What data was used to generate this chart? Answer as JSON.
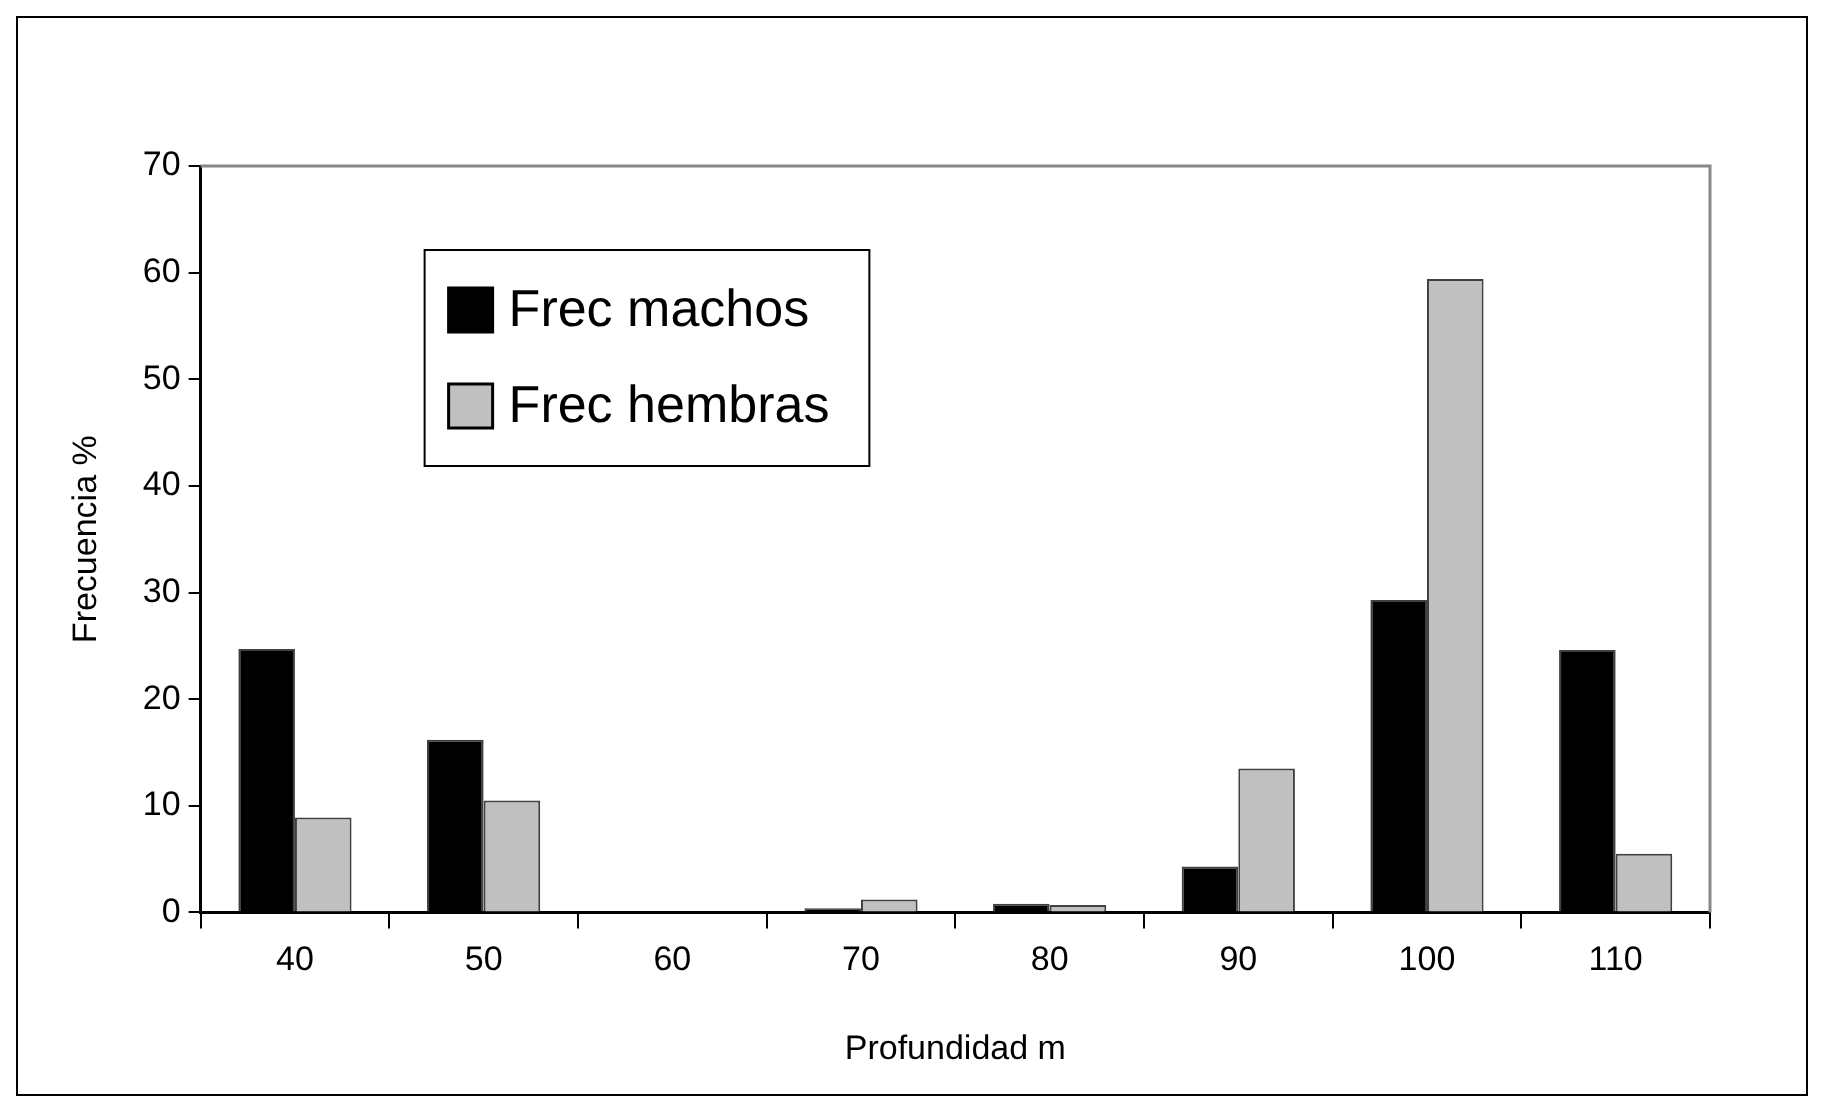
{
  "chart_data": {
    "type": "bar",
    "xlabel": "Profundidad m",
    "ylabel": "Frecuencia %",
    "categories": [
      "40",
      "50",
      "60",
      "70",
      "80",
      "90",
      "100",
      "110"
    ],
    "series": [
      {
        "name": "Frec machos",
        "color": "#000000",
        "values": [
          24.7,
          16.2,
          0,
          0.4,
          0.8,
          4.3,
          29.3,
          24.6
        ]
      },
      {
        "name": "Frec hembras",
        "color": "#c0c0c0",
        "values": [
          8.9,
          10.5,
          0,
          1.2,
          0.7,
          13.5,
          59.4,
          5.5
        ]
      }
    ],
    "ylim": [
      0,
      70
    ],
    "yticks": [
      0,
      10,
      20,
      30,
      40,
      50,
      60,
      70
    ],
    "grid": false,
    "legend": "top left"
  }
}
